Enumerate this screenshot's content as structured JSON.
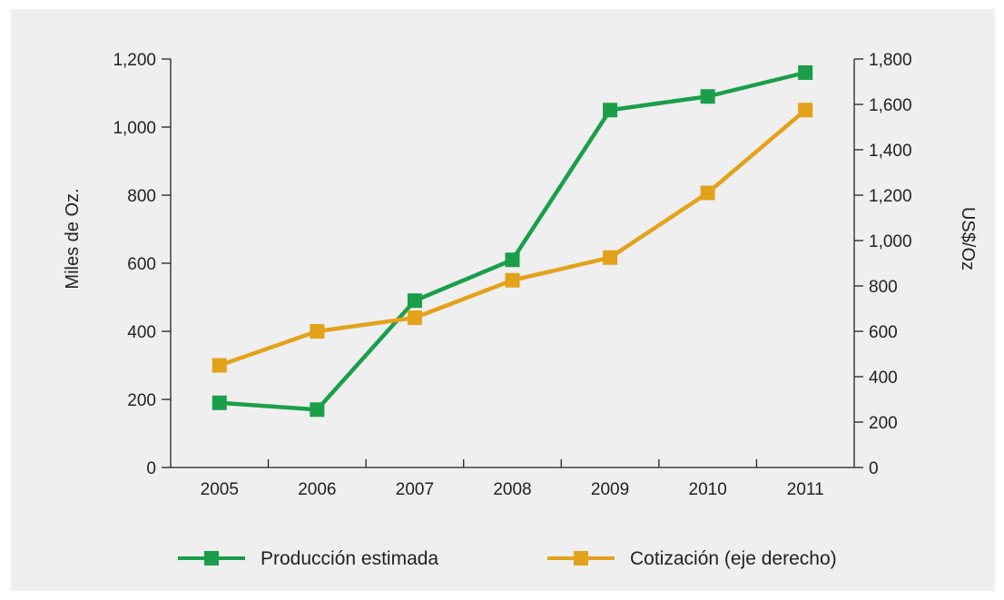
{
  "colors": {
    "background": "#efefef",
    "axis": "#222222",
    "production": "#1a9e4a",
    "price": "#e3a21a"
  },
  "chart_data": {
    "type": "line",
    "categories": [
      "2005",
      "2006",
      "2007",
      "2008",
      "2009",
      "2010",
      "2011"
    ],
    "ylabel": "Miles de Oz.",
    "ylabel_right": "US$/Oz",
    "ylim": [
      0,
      1200
    ],
    "ylim_right": [
      0,
      1800
    ],
    "yticks": [
      "0",
      "200",
      "400",
      "600",
      "800",
      "1,000",
      "1,200"
    ],
    "yticks_right": [
      "0",
      "200",
      "400",
      "600",
      "800",
      "1,000",
      "1,200",
      "1,400",
      "1,600",
      "1,800"
    ],
    "legend_position": "bottom",
    "series": [
      {
        "name": "Producción estimada",
        "axis": "left",
        "color": "#1a9e4a",
        "values": [
          190,
          170,
          490,
          610,
          1050,
          1090,
          1160
        ]
      },
      {
        "name": "Cotización (eje derecho)",
        "axis": "right",
        "color": "#e3a21a",
        "values": [
          450,
          600,
          660,
          825,
          925,
          1210,
          1575
        ]
      }
    ]
  }
}
